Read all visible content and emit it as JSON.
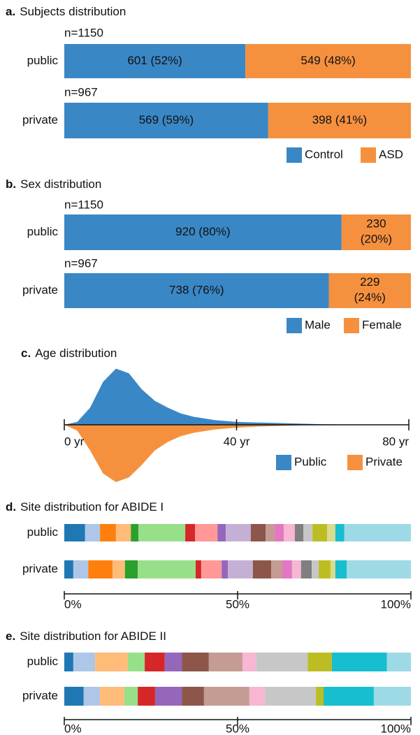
{
  "chart_data": [
    {
      "type": "stacked_bar_h",
      "label": "a.",
      "title": "Subjects distribution",
      "categories": [
        "public",
        "private"
      ],
      "annotations": [
        "n=1150",
        "n=967"
      ],
      "series": [
        {
          "name": "Control",
          "color": "#3a87c6",
          "values": [
            601,
            569
          ],
          "value_labels": [
            "601 (52%)",
            "569 (59%)"
          ]
        },
        {
          "name": "ASD",
          "color": "#f5913e",
          "values": [
            549,
            398
          ],
          "value_labels": [
            "549 (48%)",
            "398 (41%)"
          ]
        }
      ],
      "legend": "lower right"
    },
    {
      "type": "stacked_bar_h",
      "label": "b.",
      "title": "Sex distribution",
      "categories": [
        "public",
        "private"
      ],
      "annotations": [
        "n=1150",
        "n=967"
      ],
      "series": [
        {
          "name": "Male",
          "color": "#3a87c6",
          "values": [
            920,
            738
          ],
          "value_labels": [
            "920 (80%)",
            "738 (76%)"
          ]
        },
        {
          "name": "Female",
          "color": "#f5913e",
          "values": [
            230,
            229
          ],
          "value_labels": [
            "230 (20%)",
            "229 (24%)"
          ]
        }
      ],
      "legend": "lower right"
    },
    {
      "type": "mirrored_density",
      "label": "c.",
      "title": "Age distribution",
      "x": [
        0,
        3,
        6,
        9,
        12,
        15,
        18,
        21,
        24,
        27,
        30,
        35,
        40,
        45,
        50,
        55,
        60,
        65,
        70,
        75,
        80
      ],
      "xlim": [
        0,
        80
      ],
      "xticks": [
        {
          "value": 0,
          "label": "0 yr"
        },
        {
          "value": 40,
          "label": "40 yr"
        },
        {
          "value": 80,
          "label": "80 yr"
        }
      ],
      "ylim": [
        0,
        1
      ],
      "series": [
        {
          "name": "Public",
          "color": "#3a87c6",
          "values": [
            0,
            0.05,
            0.3,
            0.75,
            0.98,
            0.9,
            0.62,
            0.42,
            0.3,
            0.2,
            0.14,
            0.08,
            0.05,
            0.04,
            0.03,
            0.02,
            0.01,
            0.005,
            0,
            0,
            0
          ]
        },
        {
          "name": "Private",
          "color": "#f5913e",
          "values": [
            0,
            0.1,
            0.45,
            0.85,
            1.0,
            0.92,
            0.7,
            0.45,
            0.3,
            0.2,
            0.14,
            0.08,
            0.05,
            0.03,
            0.02,
            0.01,
            0.005,
            0,
            0,
            0,
            0
          ]
        }
      ],
      "legend": "lower right"
    },
    {
      "type": "stacked_bar_100",
      "label": "d.",
      "title": "Site distribution for ABIDE I",
      "categories": [
        "public",
        "private"
      ],
      "xlim": [
        0,
        100
      ],
      "xticks": [
        {
          "value": 0,
          "label": "0%"
        },
        {
          "value": 50,
          "label": "50%"
        },
        {
          "value": 100,
          "label": "100%"
        }
      ],
      "series": [
        {
          "color": "#1f77b4",
          "values": [
            6.0,
            2.6
          ]
        },
        {
          "color": "#aec7e8",
          "values": [
            4.3,
            4.3
          ]
        },
        {
          "color": "#ff7f0e",
          "values": [
            4.6,
            7.0
          ]
        },
        {
          "color": "#ffbb78",
          "values": [
            4.3,
            3.6
          ]
        },
        {
          "color": "#2ca02c",
          "values": [
            2.2,
            3.7
          ]
        },
        {
          "color": "#98df8a",
          "values": [
            13.5,
            16.7
          ]
        },
        {
          "color": "#d62728",
          "values": [
            2.8,
            1.6
          ]
        },
        {
          "color": "#ff9896",
          "values": [
            6.5,
            5.9
          ]
        },
        {
          "color": "#9467bd",
          "values": [
            2.4,
            1.8
          ]
        },
        {
          "color": "#c5b0d5",
          "values": [
            7.2,
            7.2
          ]
        },
        {
          "color": "#8c564b",
          "values": [
            4.3,
            5.3
          ]
        },
        {
          "color": "#c49c94",
          "values": [
            2.6,
            3.2
          ]
        },
        {
          "color": "#e377c2",
          "values": [
            2.6,
            2.8
          ]
        },
        {
          "color": "#f7b6d2",
          "values": [
            3.2,
            2.6
          ]
        },
        {
          "color": "#7f7f7f",
          "values": [
            2.5,
            3.1
          ]
        },
        {
          "color": "#c7c7c7",
          "values": [
            2.6,
            2.0
          ]
        },
        {
          "color": "#bcbd22",
          "values": [
            4.2,
            3.4
          ]
        },
        {
          "color": "#dbdb8d",
          "values": [
            2.4,
            1.4
          ]
        },
        {
          "color": "#17becf",
          "values": [
            2.6,
            3.3
          ]
        },
        {
          "color": "#9edae5",
          "values": [
            19.2,
            18.5
          ]
        }
      ]
    },
    {
      "type": "stacked_bar_100",
      "label": "e.",
      "title": "Site distribution for ABIDE II",
      "categories": [
        "public",
        "private"
      ],
      "xlim": [
        0,
        100
      ],
      "xticks": [
        {
          "value": 0,
          "label": "0%"
        },
        {
          "value": 50,
          "label": "50%"
        },
        {
          "value": 100,
          "label": "100%"
        }
      ],
      "series": [
        {
          "color": "#1f77b4",
          "values": [
            2.6,
            5.6
          ]
        },
        {
          "color": "#aec7e8",
          "values": [
            6.3,
            4.7
          ]
        },
        {
          "color": "#ffbb78",
          "values": [
            9.4,
            7.0
          ]
        },
        {
          "color": "#98df8a",
          "values": [
            4.9,
            3.9
          ]
        },
        {
          "color": "#d62728",
          "values": [
            5.8,
            5.0
          ]
        },
        {
          "color": "#9467bd",
          "values": [
            4.9,
            7.7
          ]
        },
        {
          "color": "#8c564b",
          "values": [
            7.8,
            6.4
          ]
        },
        {
          "color": "#c49c94",
          "values": [
            9.7,
            13.1
          ]
        },
        {
          "color": "#f7b6d2",
          "values": [
            4.0,
            4.5
          ]
        },
        {
          "color": "#c7c7c7",
          "values": [
            14.8,
            14.7
          ]
        },
        {
          "color": "#bcbd22",
          "values": [
            7.0,
            2.2
          ]
        },
        {
          "color": "#17becf",
          "values": [
            15.9,
            14.5
          ]
        },
        {
          "color": "#9edae5",
          "values": [
            6.9,
            10.7
          ]
        }
      ]
    }
  ]
}
